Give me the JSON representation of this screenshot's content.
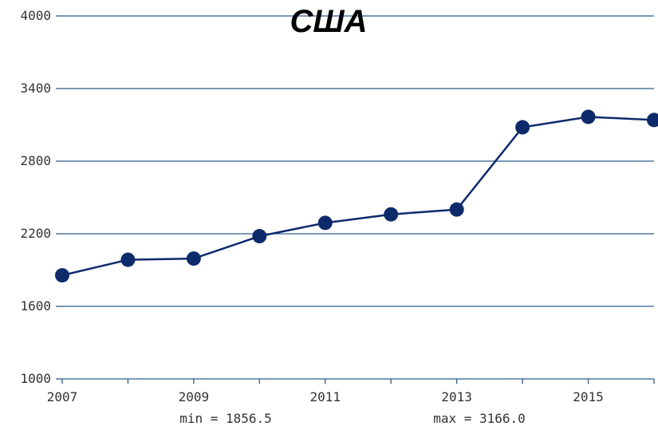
{
  "chart_data": {
    "type": "line",
    "title": "США",
    "x": [
      2007,
      2008,
      2009,
      2010,
      2011,
      2012,
      2013,
      2014,
      2015,
      2016
    ],
    "series": [
      {
        "values": [
          1856.5,
          1985,
          1995,
          2180,
          2290,
          2360,
          2400,
          3080,
          3166.0,
          3140
        ]
      }
    ],
    "xlim": [
      2007,
      2016
    ],
    "ylim": [
      1000,
      4000
    ],
    "y_ticks": [
      1000,
      1600,
      2200,
      2800,
      3400,
      4000
    ],
    "x_ticks": [
      2007,
      2009,
      2011,
      2013,
      2015
    ],
    "grid": "horizontal",
    "colors": {
      "line": "#0d2a6b",
      "marker": "#0d2a6b",
      "grid": "#2e5c8a",
      "axis": "#2e5c8a"
    },
    "stats": {
      "min_label": "min = 1856.5",
      "max_label": "max = 3166.0"
    }
  }
}
